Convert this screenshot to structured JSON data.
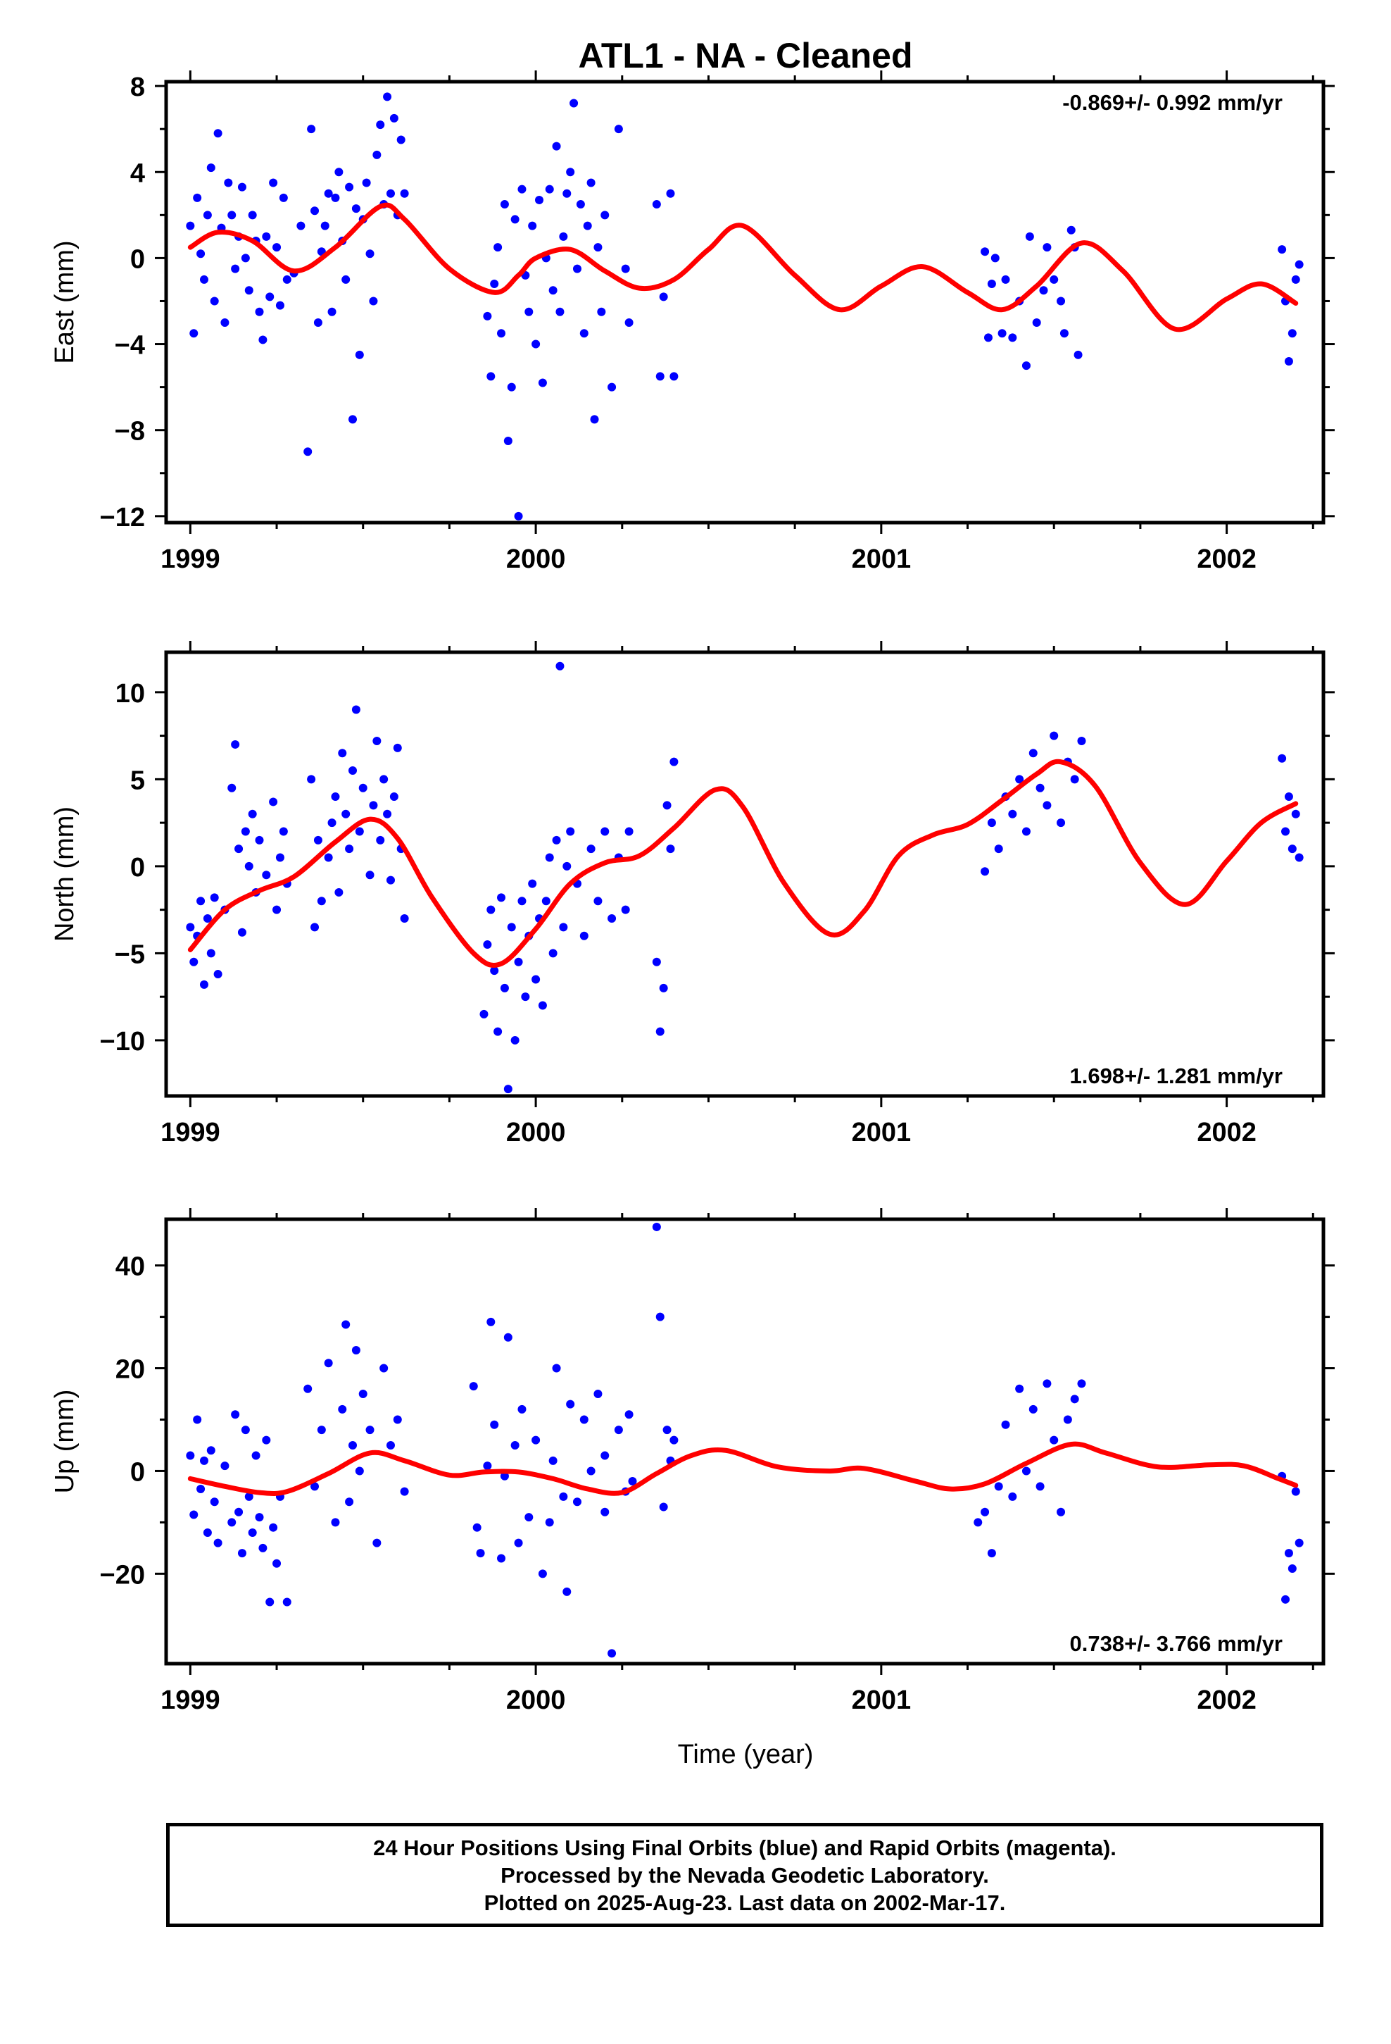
{
  "title": "ATL1  - NA - Cleaned",
  "xlabel": "Time (year)",
  "footer": {
    "line1": "24 Hour Positions Using Final Orbits (blue) and Rapid Orbits (magenta).",
    "line2": "Processed by the Nevada Geodetic Laboratory.",
    "line3": "Plotted on 2025-Aug-23. Last data on 2002-Mar-17."
  },
  "colors": {
    "points": "#0000ff",
    "fit": "#ff0000",
    "frame": "#000000"
  },
  "chart_data": [
    {
      "type": "scatter",
      "ylabel": "East (mm)",
      "rate": "-0.869+/- 0.992 mm/yr",
      "rate_position": "top-right",
      "xlim": [
        1998.93,
        2002.28
      ],
      "ylim": [
        -12.3,
        8.2
      ],
      "xticks": [
        1999,
        2000,
        2001,
        2002
      ],
      "yticks": [
        8,
        4,
        0,
        -4,
        -8,
        -12
      ],
      "yticklabels": [
        "8",
        "4",
        "0",
        "−4",
        "−8",
        "−12"
      ],
      "fit_curve": {
        "name": "",
        "x": [
          1999.0,
          1999.08,
          1999.18,
          1999.3,
          1999.42,
          1999.55,
          1999.62,
          1999.75,
          1999.88,
          1999.95,
          2000.0,
          2000.1,
          2000.2,
          2000.3,
          2000.4,
          2000.5,
          2000.6,
          2000.75,
          2000.88,
          2001.0,
          2001.12,
          2001.25,
          2001.35,
          2001.45,
          2001.58,
          2001.7,
          2001.85,
          2002.0,
          2002.1,
          2002.2
        ],
        "y": [
          0.5,
          1.2,
          0.8,
          -0.6,
          0.5,
          2.4,
          1.8,
          -0.5,
          -1.6,
          -0.8,
          0.0,
          0.4,
          -0.6,
          -1.4,
          -1.0,
          0.4,
          1.5,
          -0.8,
          -2.4,
          -1.3,
          -0.4,
          -1.6,
          -2.4,
          -1.3,
          0.7,
          -0.6,
          -3.3,
          -1.9,
          -1.2,
          -2.1
        ]
      },
      "points": {
        "name": "",
        "x": [
          1999.0,
          1999.01,
          1999.02,
          1999.03,
          1999.04,
          1999.05,
          1999.06,
          1999.07,
          1999.08,
          1999.09,
          1999.1,
          1999.11,
          1999.12,
          1999.13,
          1999.14,
          1999.15,
          1999.16,
          1999.17,
          1999.18,
          1999.19,
          1999.2,
          1999.21,
          1999.22,
          1999.23,
          1999.24,
          1999.25,
          1999.26,
          1999.27,
          1999.28,
          1999.3,
          1999.32,
          1999.34,
          1999.35,
          1999.36,
          1999.37,
          1999.38,
          1999.39,
          1999.4,
          1999.41,
          1999.42,
          1999.43,
          1999.44,
          1999.45,
          1999.46,
          1999.47,
          1999.48,
          1999.49,
          1999.5,
          1999.51,
          1999.52,
          1999.53,
          1999.54,
          1999.55,
          1999.56,
          1999.57,
          1999.58,
          1999.59,
          1999.6,
          1999.61,
          1999.62,
          1999.86,
          1999.87,
          1999.88,
          1999.89,
          1999.9,
          1999.91,
          1999.92,
          1999.93,
          1999.94,
          1999.95,
          1999.96,
          1999.97,
          1999.98,
          1999.99,
          2000.0,
          2000.01,
          2000.02,
          2000.03,
          2000.04,
          2000.05,
          2000.06,
          2000.07,
          2000.08,
          2000.09,
          2000.1,
          2000.11,
          2000.12,
          2000.13,
          2000.14,
          2000.15,
          2000.16,
          2000.17,
          2000.18,
          2000.19,
          2000.2,
          2000.22,
          2000.24,
          2000.26,
          2000.27,
          2000.35,
          2000.36,
          2000.37,
          2000.39,
          2000.4,
          2001.3,
          2001.31,
          2001.32,
          2001.33,
          2001.35,
          2001.36,
          2001.38,
          2001.4,
          2001.42,
          2001.43,
          2001.45,
          2001.47,
          2001.48,
          2001.5,
          2001.52,
          2001.53,
          2001.55,
          2001.56,
          2001.57,
          2002.16,
          2002.17,
          2002.18,
          2002.19,
          2002.2,
          2002.21
        ],
        "y": [
          1.5,
          -3.5,
          2.8,
          0.2,
          -1.0,
          2.0,
          4.2,
          -2.0,
          5.8,
          1.4,
          -3.0,
          3.5,
          2.0,
          -0.5,
          1.0,
          3.3,
          0.0,
          -1.5,
          2.0,
          0.8,
          -2.5,
          -3.8,
          1.0,
          -1.8,
          3.5,
          0.5,
          -2.2,
          2.8,
          -1.0,
          -0.7,
          1.5,
          -9.0,
          6.0,
          2.2,
          -3.0,
          0.3,
          1.5,
          3.0,
          -2.5,
          2.8,
          4.0,
          0.8,
          -1.0,
          3.3,
          -7.5,
          2.3,
          -4.5,
          1.8,
          3.5,
          0.2,
          -2.0,
          4.8,
          6.2,
          2.5,
          7.5,
          3.0,
          6.5,
          2.0,
          5.5,
          3.0,
          -2.7,
          -5.5,
          -1.2,
          0.5,
          -3.5,
          2.5,
          -8.5,
          -6.0,
          1.8,
          -12.0,
          3.2,
          -0.8,
          -2.5,
          1.5,
          -4.0,
          2.7,
          -5.8,
          0.0,
          3.2,
          -1.5,
          5.2,
          -2.5,
          1.0,
          3.0,
          4.0,
          7.2,
          -0.5,
          2.5,
          -3.5,
          1.5,
          3.5,
          -7.5,
          0.5,
          -2.5,
          2.0,
          -6.0,
          6.0,
          -0.5,
          -3.0,
          2.5,
          -5.5,
          -1.8,
          3.0,
          -5.5,
          0.3,
          -3.7,
          -1.2,
          0.0,
          -3.5,
          -1.0,
          -3.7,
          -2.0,
          -5.0,
          1.0,
          -3.0,
          -1.5,
          0.5,
          -1.0,
          -2.0,
          -3.5,
          1.3,
          0.5,
          -4.5,
          0.4,
          -2.0,
          -4.8,
          -3.5,
          -1.0,
          -0.3
        ]
      }
    },
    {
      "type": "scatter",
      "ylabel": "North (mm)",
      "rate": "1.698+/- 1.281 mm/yr",
      "rate_position": "bottom-right",
      "xlim": [
        1998.93,
        2002.28
      ],
      "ylim": [
        -13.2,
        12.3
      ],
      "xticks": [
        1999,
        2000,
        2001,
        2002
      ],
      "yticks": [
        10,
        5,
        0,
        -5,
        -10
      ],
      "yticklabels": [
        "10",
        "5",
        "0",
        "−5",
        "−10"
      ],
      "fit_curve": {
        "name": "",
        "x": [
          1999.0,
          1999.1,
          1999.2,
          1999.3,
          1999.42,
          1999.52,
          1999.6,
          1999.7,
          1999.82,
          1999.9,
          2000.0,
          2000.1,
          2000.2,
          2000.3,
          2000.4,
          2000.52,
          2000.6,
          2000.72,
          2000.85,
          2000.95,
          2001.05,
          2001.15,
          2001.25,
          2001.35,
          2001.45,
          2001.52,
          2001.62,
          2001.75,
          2001.88,
          2002.0,
          2002.1,
          2002.2
        ],
        "y": [
          -4.8,
          -2.5,
          -1.4,
          -0.6,
          1.4,
          2.7,
          1.6,
          -1.8,
          -5.0,
          -5.6,
          -3.6,
          -1.0,
          0.2,
          0.6,
          2.2,
          4.4,
          3.4,
          -1.0,
          -3.9,
          -2.6,
          0.6,
          1.8,
          2.4,
          3.8,
          5.3,
          6.0,
          4.6,
          0.2,
          -2.2,
          0.3,
          2.5,
          3.6
        ]
      },
      "points": {
        "name": "",
        "x": [
          1999.0,
          1999.01,
          1999.02,
          1999.03,
          1999.04,
          1999.05,
          1999.06,
          1999.07,
          1999.08,
          1999.1,
          1999.12,
          1999.13,
          1999.14,
          1999.15,
          1999.16,
          1999.17,
          1999.18,
          1999.19,
          1999.2,
          1999.22,
          1999.24,
          1999.25,
          1999.26,
          1999.27,
          1999.28,
          1999.35,
          1999.36,
          1999.37,
          1999.38,
          1999.4,
          1999.41,
          1999.42,
          1999.43,
          1999.44,
          1999.45,
          1999.46,
          1999.47,
          1999.48,
          1999.49,
          1999.5,
          1999.52,
          1999.53,
          1999.54,
          1999.55,
          1999.56,
          1999.57,
          1999.58,
          1999.59,
          1999.6,
          1999.61,
          1999.62,
          1999.85,
          1999.86,
          1999.87,
          1999.88,
          1999.89,
          1999.9,
          1999.91,
          1999.92,
          1999.93,
          1999.94,
          1999.95,
          1999.96,
          1999.97,
          1999.98,
          1999.99,
          2000.0,
          2000.01,
          2000.02,
          2000.03,
          2000.04,
          2000.05,
          2000.06,
          2000.07,
          2000.08,
          2000.09,
          2000.1,
          2000.12,
          2000.14,
          2000.16,
          2000.18,
          2000.2,
          2000.22,
          2000.24,
          2000.26,
          2000.27,
          2000.35,
          2000.36,
          2000.37,
          2000.38,
          2000.39,
          2000.4,
          2001.3,
          2001.32,
          2001.34,
          2001.36,
          2001.38,
          2001.4,
          2001.42,
          2001.44,
          2001.46,
          2001.48,
          2001.5,
          2001.52,
          2001.54,
          2001.56,
          2001.58,
          2002.16,
          2002.17,
          2002.18,
          2002.19,
          2002.2,
          2002.21
        ],
        "y": [
          -3.5,
          -5.5,
          -4.0,
          -2.0,
          -6.8,
          -3.0,
          -5.0,
          -1.8,
          -6.2,
          -2.5,
          4.5,
          7.0,
          1.0,
          -3.8,
          2.0,
          0.0,
          3.0,
          -1.5,
          1.5,
          -0.5,
          3.7,
          -2.5,
          0.5,
          2.0,
          -1.0,
          5.0,
          -3.5,
          1.5,
          -2.0,
          0.5,
          2.5,
          4.0,
          -1.5,
          6.5,
          3.0,
          1.0,
          5.5,
          9.0,
          2.0,
          4.5,
          -0.5,
          3.5,
          7.2,
          1.5,
          5.0,
          3.0,
          -0.8,
          4.0,
          6.8,
          1.0,
          -3.0,
          -8.5,
          -4.5,
          -2.5,
          -6.0,
          -9.5,
          -1.8,
          -7.0,
          -12.8,
          -3.5,
          -10.0,
          -5.5,
          -2.0,
          -7.5,
          -4.0,
          -1.0,
          -6.5,
          -3.0,
          -8.0,
          -2.0,
          0.5,
          -5.0,
          1.5,
          11.5,
          -3.5,
          0.0,
          2.0,
          -1.0,
          -4.0,
          1.0,
          -2.0,
          2.0,
          -3.0,
          0.5,
          -2.5,
          2.0,
          -5.5,
          -9.5,
          -7.0,
          3.5,
          1.0,
          6.0,
          -0.3,
          2.5,
          1.0,
          4.0,
          3.0,
          5.0,
          2.0,
          6.5,
          4.5,
          3.5,
          7.5,
          2.5,
          6.0,
          5.0,
          7.2,
          6.2,
          2.0,
          4.0,
          1.0,
          3.0,
          0.5
        ]
      }
    },
    {
      "type": "scatter",
      "ylabel": "Up (mm)",
      "rate": "0.738+/- 3.766 mm/yr",
      "rate_position": "bottom-right",
      "xlim": [
        1998.93,
        2002.28
      ],
      "ylim": [
        -37.5,
        49.0
      ],
      "xticks": [
        1999,
        2000,
        2001,
        2002
      ],
      "yticks": [
        40,
        20,
        0,
        -20
      ],
      "yticklabels": [
        "40",
        "20",
        "0",
        "−20"
      ],
      "fit_curve": {
        "name": "",
        "x": [
          1999.0,
          1999.1,
          1999.2,
          1999.28,
          1999.4,
          1999.52,
          1999.62,
          1999.75,
          1999.85,
          1999.95,
          2000.05,
          2000.15,
          2000.25,
          2000.35,
          2000.45,
          2000.55,
          2000.7,
          2000.85,
          2000.95,
          2001.1,
          2001.2,
          2001.3,
          2001.42,
          2001.55,
          2001.65,
          2001.8,
          2001.95,
          2002.05,
          2002.15,
          2002.2
        ],
        "y": [
          -1.5,
          -3.0,
          -4.2,
          -4.0,
          -0.5,
          3.5,
          2.0,
          -0.8,
          -0.2,
          -0.2,
          -1.5,
          -3.5,
          -4.2,
          -0.5,
          3.0,
          4.0,
          0.8,
          0.0,
          0.5,
          -2.0,
          -3.5,
          -2.5,
          1.5,
          5.2,
          3.5,
          0.8,
          1.2,
          1.0,
          -1.5,
          -2.8
        ]
      },
      "points": {
        "name": "",
        "x": [
          1999.0,
          1999.01,
          1999.02,
          1999.03,
          1999.04,
          1999.05,
          1999.06,
          1999.07,
          1999.08,
          1999.1,
          1999.12,
          1999.13,
          1999.14,
          1999.15,
          1999.16,
          1999.17,
          1999.18,
          1999.19,
          1999.2,
          1999.21,
          1999.22,
          1999.23,
          1999.24,
          1999.25,
          1999.26,
          1999.28,
          1999.34,
          1999.36,
          1999.38,
          1999.4,
          1999.42,
          1999.44,
          1999.45,
          1999.46,
          1999.47,
          1999.48,
          1999.49,
          1999.5,
          1999.52,
          1999.54,
          1999.56,
          1999.58,
          1999.6,
          1999.62,
          1999.82,
          1999.83,
          1999.84,
          1999.86,
          1999.87,
          1999.88,
          1999.9,
          1999.91,
          1999.92,
          1999.94,
          1999.95,
          1999.96,
          1999.98,
          2000.0,
          2000.02,
          2000.04,
          2000.05,
          2000.06,
          2000.08,
          2000.09,
          2000.1,
          2000.12,
          2000.14,
          2000.16,
          2000.18,
          2000.2,
          2000.2,
          2000.22,
          2000.24,
          2000.26,
          2000.27,
          2000.28,
          2000.35,
          2000.36,
          2000.37,
          2000.38,
          2000.39,
          2000.4,
          2001.28,
          2001.3,
          2001.32,
          2001.34,
          2001.36,
          2001.38,
          2001.4,
          2001.42,
          2001.44,
          2001.46,
          2001.48,
          2001.5,
          2001.52,
          2001.54,
          2001.56,
          2001.58,
          2002.16,
          2002.17,
          2002.18,
          2002.19,
          2002.2,
          2002.21
        ],
        "y": [
          3.0,
          -8.5,
          10.0,
          -3.5,
          2.0,
          -12.0,
          4.0,
          -6.0,
          -14.0,
          1.0,
          -10.0,
          11.0,
          -8.0,
          -16.0,
          8.0,
          -5.0,
          -12.0,
          3.0,
          -9.0,
          -15.0,
          6.0,
          -25.5,
          -11.0,
          -18.0,
          -5.0,
          -25.5,
          16.0,
          -3.0,
          8.0,
          21.0,
          -10.0,
          12.0,
          28.5,
          -6.0,
          5.0,
          23.5,
          0.0,
          15.0,
          8.0,
          -14.0,
          20.0,
          5.0,
          10.0,
          -4.0,
          16.5,
          -11.0,
          -16.0,
          1.0,
          29.0,
          9.0,
          -17.0,
          -1.0,
          26.0,
          5.0,
          -14.0,
          12.0,
          -9.0,
          6.0,
          -20.0,
          -10.0,
          2.0,
          20.0,
          -5.0,
          -23.5,
          13.0,
          -6.0,
          10.0,
          0.0,
          15.0,
          -8.0,
          3.0,
          -35.5,
          8.0,
          -4.0,
          11.0,
          -2.0,
          47.5,
          30.0,
          -7.0,
          8.0,
          2.0,
          6.0,
          -10.0,
          -8.0,
          -16.0,
          -3.0,
          9.0,
          -5.0,
          16.0,
          0.0,
          12.0,
          -3.0,
          17.0,
          6.0,
          -8.0,
          10.0,
          14.0,
          17.0,
          -1.0,
          -25.0,
          -16.0,
          -19.0,
          -4.0,
          -14.0
        ]
      }
    }
  ]
}
